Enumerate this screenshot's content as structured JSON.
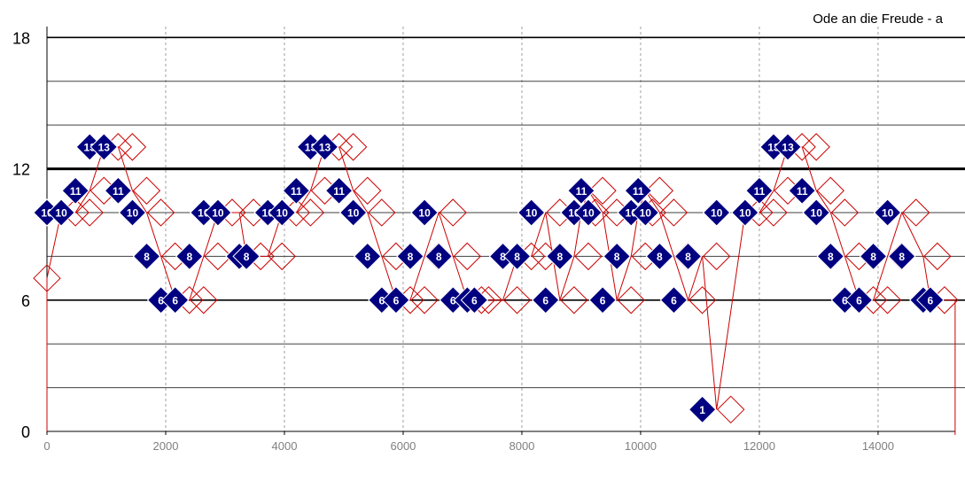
{
  "chart_data": {
    "type": "scatter",
    "title": "Ode an die Freude - a",
    "xlim": [
      0,
      15300
    ],
    "ylim": [
      0,
      18.5
    ],
    "x_ticks": [
      0,
      2000,
      4000,
      6000,
      8000,
      10000,
      12000,
      14000
    ],
    "y_ticks": [
      0,
      6,
      12,
      18
    ],
    "colors": {
      "marker_fill": "#000080",
      "marker_stroke": "#ffffff",
      "outline": "#cc0000",
      "line": "#cc0000",
      "grid_major": "#000000",
      "grid_minor": "#404040",
      "grid_vertical": "#a0a0a0"
    },
    "series": [
      {
        "type": "filled-diamonds",
        "x": [
          0,
          240,
          480,
          720,
          960,
          1200,
          1440,
          1680,
          1920,
          2160,
          2400,
          2640,
          2880,
          3240,
          3360,
          3720,
          3960,
          4200,
          4440,
          4680,
          4920,
          5160,
          5400,
          5640,
          5880,
          6120,
          6360,
          6600,
          6840,
          7080,
          7200,
          7680,
          7920,
          8160,
          8400,
          8640,
          8880,
          9000,
          9120,
          9360,
          9600,
          9840,
          9960,
          10080,
          10320,
          10560,
          10800,
          11040,
          11280,
          11760,
          12000,
          12240,
          12480,
          12720,
          12960,
          13200,
          13440,
          13680,
          13920,
          14160,
          14400,
          14760,
          14880
        ],
        "y": [
          10,
          10,
          11,
          13,
          13,
          11,
          10,
          8,
          6,
          6,
          8,
          10,
          10,
          8,
          8,
          10,
          10,
          11,
          13,
          13,
          11,
          10,
          8,
          6,
          6,
          8,
          10,
          8,
          6,
          6,
          6,
          8,
          8,
          10,
          6,
          8,
          10,
          11,
          10,
          6,
          8,
          10,
          11,
          10,
          8,
          6,
          8,
          1,
          10,
          10,
          11,
          13,
          13,
          11,
          10,
          8,
          6,
          6,
          8,
          10,
          8,
          6,
          6
        ],
        "labels": [
          "10",
          "10",
          "11",
          "13",
          "13",
          "11",
          "10",
          "8",
          "6",
          "6",
          "8",
          "10",
          "10",
          "8",
          "8",
          "10",
          "10",
          "11",
          "13",
          "13",
          "11",
          "10",
          "8",
          "6",
          "6",
          "8",
          "10",
          "8",
          "6",
          "6",
          "6",
          "8",
          "8",
          "10",
          "6",
          "8",
          "10",
          "11",
          "10",
          "6",
          "8",
          "10",
          "11",
          "10",
          "8",
          "6",
          "8",
          "1",
          "10",
          "10",
          "11",
          "13",
          "13",
          "11",
          "10",
          "8",
          "6",
          "6",
          "8",
          "10",
          "8",
          "6",
          "6"
        ]
      },
      {
        "type": "outline-diamonds",
        "x": [
          0,
          240,
          480,
          720,
          960,
          1200,
          1440,
          1680,
          1920,
          2160,
          2400,
          2640,
          2880,
          3240,
          3360,
          3720,
          3960,
          4200,
          4440,
          4680,
          4920,
          5160,
          5400,
          5640,
          5880,
          6120,
          6360,
          6600,
          6840,
          7080,
          7200,
          7680,
          7920,
          8160,
          8400,
          8640,
          8880,
          9000,
          9120,
          9360,
          9600,
          9840,
          9960,
          10080,
          10320,
          10560,
          10800,
          11040,
          11280,
          11760,
          12000,
          12240,
          12480,
          12720,
          12960,
          13200,
          13440,
          13680,
          13920,
          14160,
          14400,
          14760,
          14880
        ],
        "y": [
          7,
          10,
          10,
          11,
          13,
          13,
          11,
          10,
          8,
          6,
          6,
          8,
          10,
          10,
          8,
          8,
          10,
          10,
          11,
          13,
          13,
          11,
          10,
          8,
          6,
          6,
          8,
          10,
          8,
          6,
          6,
          6,
          8,
          8,
          10,
          6,
          8,
          10,
          11,
          10,
          6,
          8,
          10,
          11,
          10,
          8,
          6,
          8,
          1,
          10,
          10,
          11,
          13,
          13,
          11,
          10,
          8,
          6,
          6,
          8,
          10,
          8,
          6
        ]
      }
    ]
  }
}
